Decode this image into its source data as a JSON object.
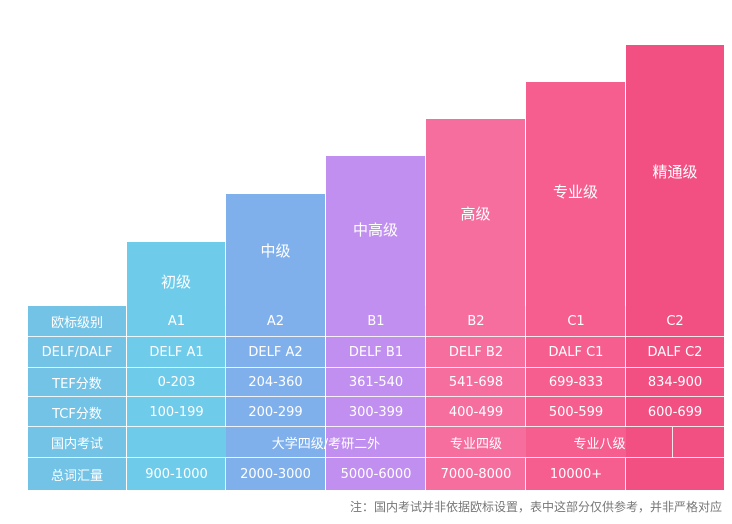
{
  "levels": [
    {
      "name": "初级"
    },
    {
      "name": "中级"
    },
    {
      "name": "中高级"
    },
    {
      "name": "高级"
    },
    {
      "name": "专业级"
    },
    {
      "name": "精通级"
    }
  ],
  "rows": [
    {
      "header": "欧标级别",
      "cells": [
        "A1",
        "A2",
        "B1",
        "B2",
        "C1",
        "C2"
      ]
    },
    {
      "header": "DELF/DALF",
      "cells": [
        "DELF A1",
        "DELF A2",
        "DELF B1",
        "DELF B2",
        "DALF C1",
        "DALF C2"
      ]
    },
    {
      "header": "TEF分数",
      "cells": [
        "0-203",
        "204-360",
        "361-540",
        "541-698",
        "699-833",
        "834-900"
      ]
    },
    {
      "header": "TCF分数",
      "cells": [
        "100-199",
        "200-299",
        "300-399",
        "400-499",
        "500-599",
        "600-699"
      ]
    }
  ],
  "domestic": {
    "header": "国内考试",
    "cet": "大学四级/考研二外",
    "tem4": "专业四级",
    "tem8": "专业八级"
  },
  "vocab": {
    "header": "总词汇量",
    "cells": [
      "900-1000",
      "2000-3000",
      "5000-6000",
      "7000-8000",
      "10000+"
    ]
  },
  "note": "注：国内考试并非依据欧标设置，表中这部分仅供参考，并非严格对应",
  "colors": {
    "header_col": "#73c3e7",
    "col1": "#6ecbea",
    "col2": "#7fb0ec",
    "col3": "#c08ff0",
    "col4": "#f56e9e",
    "col5": "#f55e8f",
    "col6": "#f24f82"
  }
}
